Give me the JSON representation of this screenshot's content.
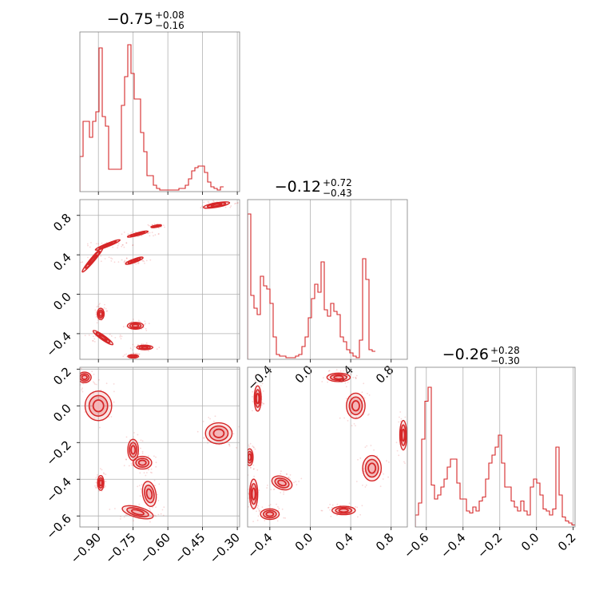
{
  "chart_data": {
    "type": "corner",
    "color": "#d62728",
    "panels": {
      "hist_p0": {
        "type": "histogram",
        "title": {
          "median": "−0.75",
          "plus": "+0.08",
          "minus": "−0.16"
        },
        "xlim": [
          -0.98,
          -0.29
        ],
        "bin_edges_start": -0.98,
        "bin_width": 0.0138,
        "counts": [
          0.22,
          0.44,
          0.44,
          0.34,
          0.44,
          0.5,
          0.9,
          0.47,
          0.41,
          0.14,
          0.14,
          0.14,
          0.14,
          0.54,
          0.72,
          0.92,
          0.74,
          0.58,
          0.58,
          0.37,
          0.25,
          0.1,
          0.1,
          0.04,
          0.02,
          0.01,
          0.01,
          0.01,
          0.01,
          0.01,
          0.01,
          0.02,
          0.02,
          0.04,
          0.08,
          0.13,
          0.15,
          0.16,
          0.16,
          0.12,
          0.06,
          0.03,
          0.02,
          0.01,
          0.03
        ],
        "ylim": [
          0,
          1
        ],
        "xticks": [
          -0.9,
          -0.75,
          -0.6,
          -0.45,
          -0.3
        ]
      },
      "hist_p1": {
        "type": "histogram",
        "title": {
          "median": "−0.12",
          "plus": "+0.72",
          "minus": "−0.43"
        },
        "xlim": [
          -0.62,
          0.96
        ],
        "bin_edges_start": -0.62,
        "bin_width": 0.0316,
        "counts": [
          0.91,
          0.4,
          0.32,
          0.28,
          0.52,
          0.46,
          0.44,
          0.35,
          0.14,
          0.03,
          0.02,
          0.02,
          0.01,
          0.01,
          0.01,
          0.02,
          0.03,
          0.08,
          0.14,
          0.26,
          0.38,
          0.47,
          0.42,
          0.61,
          0.31,
          0.27,
          0.35,
          0.3,
          0.28,
          0.14,
          0.11,
          0.06,
          0.04,
          0.02,
          0.01,
          0.12,
          0.63,
          0.5,
          0.06,
          0.05
        ],
        "ylim": [
          0,
          1
        ],
        "xticks": [
          -0.4,
          0.0,
          0.4,
          0.8
        ]
      },
      "hist_p2": {
        "type": "histogram",
        "title": {
          "median": "−0.26",
          "plus": "+0.28",
          "minus": "−0.30"
        },
        "xlim": [
          -0.66,
          0.21
        ],
        "bin_edges_start": -0.66,
        "bin_width": 0.0174,
        "counts": [
          0.06,
          0.12,
          0.44,
          0.63,
          0.7,
          0.21,
          0.14,
          0.16,
          0.2,
          0.24,
          0.3,
          0.34,
          0.34,
          0.22,
          0.14,
          0.14,
          0.08,
          0.07,
          0.1,
          0.08,
          0.13,
          0.15,
          0.24,
          0.32,
          0.36,
          0.4,
          0.46,
          0.32,
          0.2,
          0.2,
          0.13,
          0.1,
          0.08,
          0.13,
          0.08,
          0.06,
          0.2,
          0.24,
          0.22,
          0.16,
          0.09,
          0.08,
          0.06,
          0.09,
          0.4,
          0.16,
          0.05,
          0.03,
          0.02,
          0.01
        ],
        "ylim": [
          0,
          0.8
        ],
        "xticks": [
          -0.6,
          -0.4,
          -0.2,
          0.0,
          0.2
        ]
      },
      "p1_vs_p0": {
        "type": "contour",
        "xlim": [
          -0.98,
          -0.29
        ],
        "ylim": [
          -0.66,
          0.96
        ],
        "yticks": [
          -0.4,
          0.0,
          0.4,
          0.8
        ],
        "blobs": [
          {
            "x": -0.39,
            "y": 0.905,
            "rx": 0.05,
            "ry": 0.02,
            "rot": -10
          },
          {
            "x": -0.925,
            "y": 0.35,
            "rx": 0.06,
            "ry": 0.018,
            "rot": -50
          },
          {
            "x": -0.86,
            "y": 0.5,
            "rx": 0.05,
            "ry": 0.014,
            "rot": -22
          },
          {
            "x": -0.73,
            "y": 0.61,
            "rx": 0.04,
            "ry": 0.012,
            "rot": -15
          },
          {
            "x": -0.65,
            "y": 0.69,
            "rx": 0.02,
            "ry": 0.01,
            "rot": -10
          },
          {
            "x": -0.745,
            "y": 0.34,
            "rx": 0.035,
            "ry": 0.015,
            "rot": -20
          },
          {
            "x": -0.89,
            "y": -0.2,
            "rx": 0.013,
            "ry": 0.05,
            "rot": 0
          },
          {
            "x": -0.88,
            "y": -0.44,
            "rx": 0.045,
            "ry": 0.02,
            "rot": 35
          },
          {
            "x": -0.74,
            "y": -0.32,
            "rx": 0.03,
            "ry": 0.03,
            "rot": 0
          },
          {
            "x": -0.7,
            "y": -0.54,
            "rx": 0.03,
            "ry": 0.02,
            "rot": 0
          },
          {
            "x": -0.75,
            "y": -0.63,
            "rx": 0.02,
            "ry": 0.015,
            "rot": 0
          }
        ]
      },
      "p2_vs_p0": {
        "type": "contour",
        "xlim": [
          -0.98,
          -0.29
        ],
        "ylim": [
          -0.66,
          0.21
        ],
        "yticks": [
          -0.6,
          -0.4,
          -0.2,
          0.0,
          0.2
        ],
        "xticks": [
          -0.9,
          -0.75,
          -0.6,
          -0.45,
          -0.3
        ],
        "blobs": [
          {
            "x": -0.96,
            "y": 0.155,
            "rx": 0.025,
            "ry": 0.025,
            "rot": 0
          },
          {
            "x": -0.9,
            "y": 0.0,
            "rx": 0.05,
            "ry": 0.07,
            "rot": 0
          },
          {
            "x": -0.89,
            "y": -0.42,
            "rx": 0.012,
            "ry": 0.035,
            "rot": 0
          },
          {
            "x": -0.75,
            "y": -0.24,
            "rx": 0.02,
            "ry": 0.05,
            "rot": 0
          },
          {
            "x": -0.71,
            "y": -0.31,
            "rx": 0.035,
            "ry": 0.03,
            "rot": 0
          },
          {
            "x": -0.68,
            "y": -0.48,
            "rx": 0.025,
            "ry": 0.06,
            "rot": -10
          },
          {
            "x": -0.73,
            "y": -0.58,
            "rx": 0.06,
            "ry": 0.025,
            "rot": 15
          },
          {
            "x": -0.38,
            "y": -0.15,
            "rx": 0.05,
            "ry": 0.05,
            "rot": 0
          }
        ]
      },
      "p2_vs_p1": {
        "type": "contour",
        "xlim": [
          -0.62,
          0.96
        ],
        "ylim": [
          -0.66,
          0.21
        ],
        "xticks": [
          -0.4,
          0.0,
          0.4,
          0.8
        ],
        "blobs": [
          {
            "x": 0.28,
            "y": 0.155,
            "rx": 0.1,
            "ry": 0.02,
            "rot": 0
          },
          {
            "x": -0.52,
            "y": 0.04,
            "rx": 0.03,
            "ry": 0.06,
            "rot": 0
          },
          {
            "x": 0.45,
            "y": 0.0,
            "rx": 0.08,
            "ry": 0.06,
            "rot": 0
          },
          {
            "x": -0.6,
            "y": -0.28,
            "rx": 0.03,
            "ry": 0.04,
            "rot": 0
          },
          {
            "x": 0.92,
            "y": -0.16,
            "rx": 0.03,
            "ry": 0.07,
            "rot": 0
          },
          {
            "x": 0.61,
            "y": -0.34,
            "rx": 0.08,
            "ry": 0.06,
            "rot": 0
          },
          {
            "x": -0.28,
            "y": -0.42,
            "rx": 0.09,
            "ry": 0.03,
            "rot": 20
          },
          {
            "x": -0.56,
            "y": -0.48,
            "rx": 0.035,
            "ry": 0.07,
            "rot": 0
          },
          {
            "x": -0.4,
            "y": -0.59,
            "rx": 0.08,
            "ry": 0.025,
            "rot": 0
          },
          {
            "x": 0.33,
            "y": -0.57,
            "rx": 0.1,
            "ry": 0.02,
            "rot": 0
          }
        ]
      }
    }
  }
}
